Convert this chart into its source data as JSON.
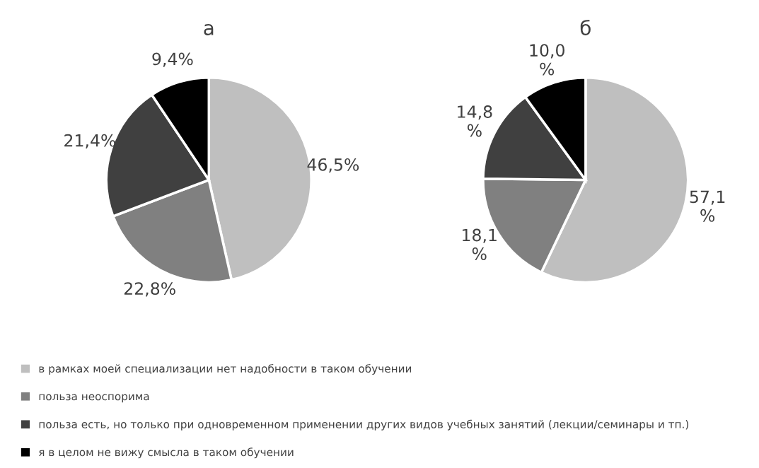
{
  "chart_data": [
    {
      "type": "pie",
      "title": "а",
      "categories": [
        "в рамках моей специализации нет надобности в таком обучении",
        "польза неоспорима",
        "польза есть, но только при одновременном применении других видов учебных занятий (лекции/семинары и тп.)",
        "я в целом не вижу смысла в таком обучении"
      ],
      "values": [
        46.5,
        22.8,
        21.4,
        9.4
      ],
      "colors": [
        "#bfbfbf",
        "#808080",
        "#404040",
        "#000000"
      ],
      "value_labels": [
        "46,5%",
        "22,8%",
        "21,4%",
        "9,4%"
      ],
      "legend": "bottom"
    },
    {
      "type": "pie",
      "title": "б",
      "categories": [
        null,
        null,
        null,
        null
      ],
      "values": [
        57.1,
        18.1,
        14.8,
        10.0
      ],
      "colors": [
        "#bfbfbf",
        "#808080",
        "#404040",
        "#000000"
      ],
      "value_labels": [
        "57,1\n%",
        "18,1\n%",
        "14,8\n%",
        "10,0\n%"
      ]
    }
  ]
}
